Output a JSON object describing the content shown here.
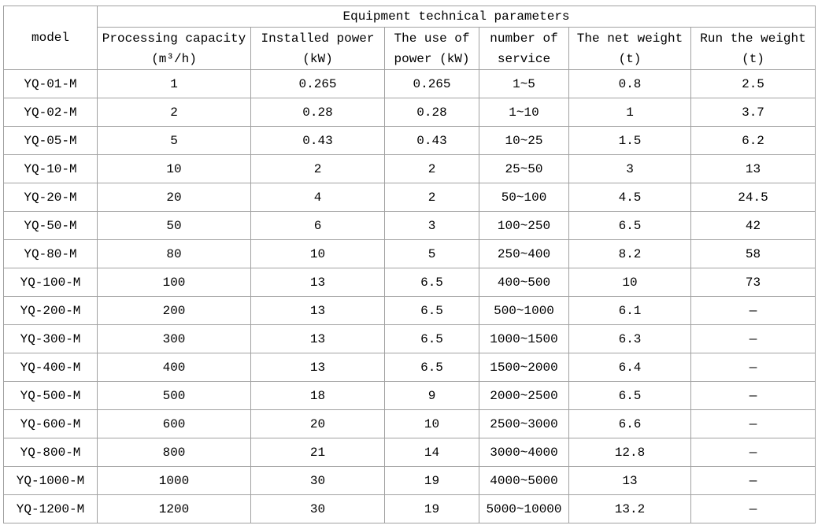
{
  "table": {
    "title": "Equipment technical parameters",
    "model_header": "model",
    "columns": [
      {
        "line1": "Processing capacity",
        "line2": "(m³/h)"
      },
      {
        "line1": "Installed power",
        "line2": "(kW)"
      },
      {
        "line1": "The use of",
        "line2": "power (kW)"
      },
      {
        "line1": "number of",
        "line2": "service"
      },
      {
        "line1": "The net weight",
        "line2": "(t)"
      },
      {
        "line1": "Run the weight",
        "line2": "(t)"
      }
    ],
    "rows": [
      [
        "YQ-01-M",
        "1",
        "0.265",
        "0.265",
        "1~5",
        "0.8",
        "2.5"
      ],
      [
        "YQ-02-M",
        "2",
        "0.28",
        "0.28",
        "1~10",
        "1",
        "3.7"
      ],
      [
        "YQ-05-M",
        "5",
        "0.43",
        "0.43",
        "10~25",
        "1.5",
        "6.2"
      ],
      [
        "YQ-10-M",
        "10",
        "2",
        "2",
        "25~50",
        "3",
        "13"
      ],
      [
        "YQ-20-M",
        "20",
        "4",
        "2",
        "50~100",
        "4.5",
        "24.5"
      ],
      [
        "YQ-50-M",
        "50",
        "6",
        "3",
        "100~250",
        "6.5",
        "42"
      ],
      [
        "YQ-80-M",
        "80",
        "10",
        "5",
        "250~400",
        "8.2",
        "58"
      ],
      [
        "YQ-100-M",
        "100",
        "13",
        "6.5",
        "400~500",
        "10",
        "73"
      ],
      [
        "YQ-200-M",
        "200",
        "13",
        "6.5",
        "500~1000",
        "6.1",
        "—"
      ],
      [
        "YQ-300-M",
        "300",
        "13",
        "6.5",
        "1000~1500",
        "6.3",
        "—"
      ],
      [
        "YQ-400-M",
        "400",
        "13",
        "6.5",
        "1500~2000",
        "6.4",
        "—"
      ],
      [
        "YQ-500-M",
        "500",
        "18",
        "9",
        "2000~2500",
        "6.5",
        "—"
      ],
      [
        "YQ-600-M",
        "600",
        "20",
        "10",
        "2500~3000",
        "6.6",
        "—"
      ],
      [
        "YQ-800-M",
        "800",
        "21",
        "14",
        "3000~4000",
        "12.8",
        "—"
      ],
      [
        "YQ-1000-M",
        "1000",
        "30",
        "19",
        "4000~5000",
        "13",
        "—"
      ],
      [
        "YQ-1200-M",
        "1200",
        "30",
        "19",
        "5000~10000",
        "13.2",
        "—"
      ]
    ],
    "colors": {
      "border": "#a1a1a1",
      "text": "#000000",
      "background": "#ffffff"
    }
  }
}
